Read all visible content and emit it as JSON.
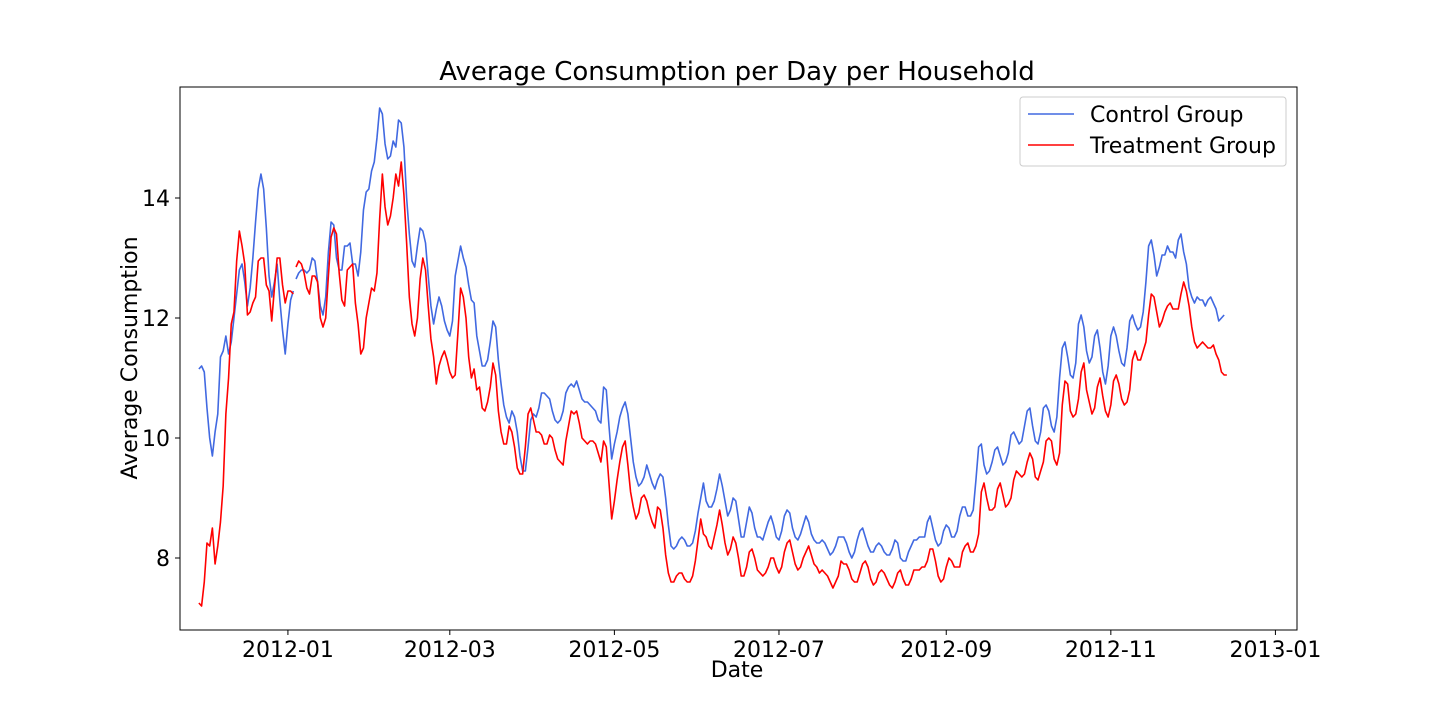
{
  "chart_data": {
    "type": "line",
    "title": "Average Consumption per Day per Household",
    "xlabel": "Date",
    "ylabel": "Average Consumption",
    "x_range": [
      "2011-11-22",
      "2013-01-09"
    ],
    "ylim": [
      6.8,
      15.85
    ],
    "x_ticks": [
      {
        "date": "2012-01-01",
        "label": "2012-01"
      },
      {
        "date": "2012-03-01",
        "label": "2012-03"
      },
      {
        "date": "2012-05-01",
        "label": "2012-05"
      },
      {
        "date": "2012-07-01",
        "label": "2012-07"
      },
      {
        "date": "2012-09-01",
        "label": "2012-09"
      },
      {
        "date": "2012-11-01",
        "label": "2012-11"
      },
      {
        "date": "2013-01-01",
        "label": "2013-01"
      }
    ],
    "y_ticks": [
      8,
      10,
      12,
      14
    ],
    "grid": false,
    "legend_position": "top-right",
    "series": [
      {
        "name": "Control Group",
        "color": "#4169e1",
        "segments": [
          {
            "start": "2011-11-29",
            "values": [
              11.15,
              11.2,
              11.1,
              10.5,
              10.0,
              9.7,
              10.1,
              10.4,
              11.35,
              11.45,
              11.7,
              11.4,
              11.6,
              12.0,
              12.4,
              12.8,
              12.9,
              12.6,
              12.2,
              12.5,
              13.0,
              13.6,
              14.15,
              14.4,
              14.15,
              13.5,
              12.7,
              12.35,
              12.6,
              12.9,
              12.3,
              11.8,
              11.4,
              11.9,
              12.3,
              12.45
            ]
          },
          {
            "start": "2012-01-04",
            "values": [
              12.65,
              12.75,
              12.8,
              12.8,
              12.75,
              12.8,
              13.0,
              12.95,
              12.6,
              12.2,
              12.05,
              12.35,
              13.1,
              13.6,
              13.55,
              13.0,
              12.8,
              12.8,
              13.2,
              13.2,
              13.25,
              12.9,
              12.9,
              12.7,
              13.1,
              13.8,
              14.1,
              14.15,
              14.45,
              14.6,
              15.0,
              15.5,
              15.4,
              14.9,
              14.65,
              14.7,
              14.95,
              14.85,
              15.3,
              15.25,
              14.85,
              14.0,
              13.4,
              12.95,
              12.85,
              13.2,
              13.5,
              13.45,
              13.25,
              12.7,
              12.2,
              11.9,
              12.15,
              12.35,
              12.2,
              11.95,
              11.8,
              11.7,
              11.95,
              12.7,
              12.95,
              13.2,
              13.0,
              12.85,
              12.55,
              12.3,
              12.25,
              11.7,
              11.45,
              11.2,
              11.2,
              11.3,
              11.6,
              11.95,
              11.85,
              11.3,
              10.9,
              10.55,
              10.35,
              10.25,
              10.45,
              10.35,
              10.1,
              9.7,
              9.45,
              9.45,
              9.85,
              10.3,
              10.4,
              10.35,
              10.5,
              10.75,
              10.75,
              10.7,
              10.65,
              10.45,
              10.3,
              10.25,
              10.3,
              10.45,
              10.75,
              10.85,
              10.9,
              10.85,
              10.95,
              10.8,
              10.65,
              10.6,
              10.6,
              10.55,
              10.5,
              10.45,
              10.3,
              10.25,
              10.85,
              10.8,
              10.2,
              9.65,
              9.9,
              10.1,
              10.35,
              10.5,
              10.6,
              10.4,
              10.0,
              9.6,
              9.35,
              9.2,
              9.25,
              9.35,
              9.55,
              9.4,
              9.25,
              9.15,
              9.3,
              9.4,
              9.35,
              9.0,
              8.55,
              8.2,
              8.15,
              8.2,
              8.3,
              8.35,
              8.3,
              8.2,
              8.2,
              8.25,
              8.45,
              8.75,
              9.0,
              9.25,
              8.95,
              8.85,
              8.85,
              8.95,
              9.15,
              9.4,
              9.2,
              8.95,
              8.7,
              8.8,
              9.0,
              8.95,
              8.65,
              8.35,
              8.35,
              8.6,
              8.85,
              8.75,
              8.5,
              8.35,
              8.35,
              8.3,
              8.45,
              8.6,
              8.7,
              8.55,
              8.35,
              8.3,
              8.45,
              8.7,
              8.8,
              8.75,
              8.5,
              8.35,
              8.3,
              8.4,
              8.55,
              8.7,
              8.6,
              8.4,
              8.3,
              8.25,
              8.25,
              8.3,
              8.25,
              8.15,
              8.05,
              8.1,
              8.2,
              8.35,
              8.35,
              8.35,
              8.25,
              8.1,
              8.0,
              8.1,
              8.3,
              8.45,
              8.5,
              8.35,
              8.2,
              8.1,
              8.1,
              8.2,
              8.25,
              8.2,
              8.1,
              8.05,
              8.05,
              8.15,
              8.3,
              8.25,
              8.0,
              7.95,
              7.95,
              8.1,
              8.2,
              8.3,
              8.3,
              8.35,
              8.35,
              8.35,
              8.6,
              8.7,
              8.5,
              8.3,
              8.2,
              8.25,
              8.45,
              8.55,
              8.5,
              8.35,
              8.35,
              8.45,
              8.7,
              8.85,
              8.85,
              8.7,
              8.7,
              8.8,
              9.3,
              9.85,
              9.9,
              9.55,
              9.4,
              9.45,
              9.6,
              9.8,
              9.85,
              9.7,
              9.55,
              9.6,
              9.75,
              10.05,
              10.1,
              10.0,
              9.9,
              9.95,
              10.2,
              10.45,
              10.5,
              10.2,
              9.95,
              9.9,
              10.1,
              10.5,
              10.55,
              10.45,
              10.2,
              10.1,
              10.35,
              11.0,
              11.5,
              11.6,
              11.35,
              11.05,
              11.0,
              11.25,
              11.9,
              12.05,
              11.85,
              11.45,
              11.25,
              11.35,
              11.7,
              11.8,
              11.5,
              11.1,
              10.9,
              11.2,
              11.7,
              11.85,
              11.7,
              11.45,
              11.25,
              11.2,
              11.5,
              11.95,
              12.05,
              11.9,
              11.8,
              11.85,
              12.1,
              12.6,
              13.2,
              13.3,
              13.05,
              12.7,
              12.85,
              13.05,
              13.05,
              13.2,
              13.1,
              13.1,
              13.0,
              13.3,
              13.4,
              13.1,
              12.9,
              12.5,
              12.35,
              12.25,
              12.35,
              12.3,
              12.3,
              12.2,
              12.3,
              12.35,
              12.25,
              12.15,
              11.95,
              12.0,
              12.05
            ]
          }
        ]
      },
      {
        "name": "Treatment Group",
        "color": "#ff0000",
        "segments": [
          {
            "start": "2011-11-29",
            "values": [
              7.25,
              7.2,
              7.6,
              8.25,
              8.2,
              8.5,
              7.9,
              8.2,
              8.6,
              9.2,
              10.4,
              11.0,
              11.9,
              12.1,
              12.95,
              13.45,
              13.2,
              12.9,
              12.05,
              12.1,
              12.25,
              12.35,
              12.95,
              13.0,
              13.0,
              12.55,
              12.45,
              11.95,
              12.5,
              13.0,
              13.0,
              12.55,
              12.25,
              12.45,
              12.45,
              12.4
            ]
          },
          {
            "start": "2012-01-04",
            "values": [
              12.85,
              12.95,
              12.9,
              12.75,
              12.5,
              12.4,
              12.7,
              12.7,
              12.6,
              12.0,
              11.85,
              12.0,
              12.7,
              13.35,
              13.5,
              13.4,
              12.75,
              12.3,
              12.2,
              12.8,
              12.85,
              12.9,
              12.25,
              11.9,
              11.4,
              11.5,
              12.0,
              12.25,
              12.5,
              12.45,
              12.75,
              13.65,
              14.4,
              13.85,
              13.55,
              13.7,
              14.0,
              14.4,
              14.2,
              14.6,
              14.05,
              13.25,
              12.35,
              11.9,
              11.7,
              12.0,
              12.65,
              13.0,
              12.8,
              12.2,
              11.65,
              11.35,
              10.9,
              11.2,
              11.35,
              11.45,
              11.3,
              11.1,
              11.0,
              11.05,
              11.75,
              12.5,
              12.35,
              12.0,
              11.35,
              11.0,
              11.15,
              10.8,
              10.85,
              10.5,
              10.45,
              10.6,
              10.85,
              11.25,
              11.05,
              10.45,
              10.1,
              9.9,
              9.9,
              10.2,
              10.1,
              9.85,
              9.5,
              9.4,
              9.4,
              9.85,
              10.4,
              10.5,
              10.3,
              10.1,
              10.1,
              10.05,
              9.9,
              9.9,
              10.05,
              10.0,
              9.8,
              9.65,
              9.6,
              9.55,
              9.95,
              10.2,
              10.45,
              10.4,
              10.45,
              10.25,
              10.0,
              9.95,
              9.9,
              9.95,
              9.95,
              9.9,
              9.75,
              9.6,
              9.95,
              9.85,
              9.25,
              8.65,
              8.95,
              9.3,
              9.6,
              9.85,
              9.95,
              9.55,
              9.1,
              8.85,
              8.65,
              8.75,
              9.0,
              9.05,
              8.95,
              8.75,
              8.6,
              8.5,
              8.85,
              8.8,
              8.5,
              8.05,
              7.75,
              7.6,
              7.6,
              7.7,
              7.75,
              7.75,
              7.65,
              7.6,
              7.6,
              7.7,
              7.95,
              8.3,
              8.65,
              8.4,
              8.35,
              8.2,
              8.15,
              8.35,
              8.55,
              8.8,
              8.55,
              8.25,
              8.05,
              8.15,
              8.35,
              8.25,
              8.0,
              7.7,
              7.7,
              7.85,
              8.1,
              8.15,
              8.0,
              7.8,
              7.75,
              7.7,
              7.75,
              7.85,
              8.0,
              8.0,
              7.85,
              7.75,
              7.85,
              8.1,
              8.25,
              8.3,
              8.1,
              7.9,
              7.8,
              7.85,
              8.0,
              8.1,
              8.2,
              8.05,
              7.9,
              7.85,
              7.75,
              7.8,
              7.75,
              7.7,
              7.6,
              7.5,
              7.6,
              7.7,
              7.95,
              7.9,
              7.9,
              7.8,
              7.65,
              7.6,
              7.6,
              7.75,
              7.9,
              7.95,
              7.85,
              7.65,
              7.55,
              7.6,
              7.75,
              7.8,
              7.75,
              7.65,
              7.55,
              7.5,
              7.6,
              7.75,
              7.8,
              7.65,
              7.55,
              7.55,
              7.65,
              7.8,
              7.8,
              7.8,
              7.85,
              7.85,
              7.95,
              8.15,
              8.15,
              7.95,
              7.7,
              7.6,
              7.65,
              7.85,
              8.0,
              7.95,
              7.85,
              7.85,
              7.85,
              8.1,
              8.2,
              8.25,
              8.1,
              8.1,
              8.2,
              8.4,
              9.1,
              9.25,
              9.0,
              8.8,
              8.8,
              8.85,
              9.15,
              9.25,
              9.05,
              8.85,
              8.9,
              9.0,
              9.3,
              9.45,
              9.4,
              9.35,
              9.4,
              9.6,
              9.75,
              9.65,
              9.35,
              9.3,
              9.45,
              9.6,
              9.95,
              10.0,
              9.95,
              9.65,
              9.55,
              9.75,
              10.55,
              10.95,
              10.9,
              10.45,
              10.35,
              10.4,
              10.65,
              11.1,
              11.25,
              10.8,
              10.6,
              10.4,
              10.5,
              10.85,
              11.0,
              10.7,
              10.45,
              10.35,
              10.55,
              10.95,
              11.05,
              10.9,
              10.65,
              10.55,
              10.6,
              10.8,
              11.3,
              11.45,
              11.3,
              11.3,
              11.45,
              11.6,
              12.05,
              12.4,
              12.35,
              12.1,
              11.85,
              11.95,
              12.1,
              12.2,
              12.25,
              12.15,
              12.15,
              12.15,
              12.4,
              12.6,
              12.45,
              12.2,
              11.85,
              11.6,
              11.5,
              11.55,
              11.6,
              11.55,
              11.5,
              11.5,
              11.55,
              11.4,
              11.3,
              11.1,
              11.05,
              11.05
            ]
          }
        ]
      }
    ]
  }
}
